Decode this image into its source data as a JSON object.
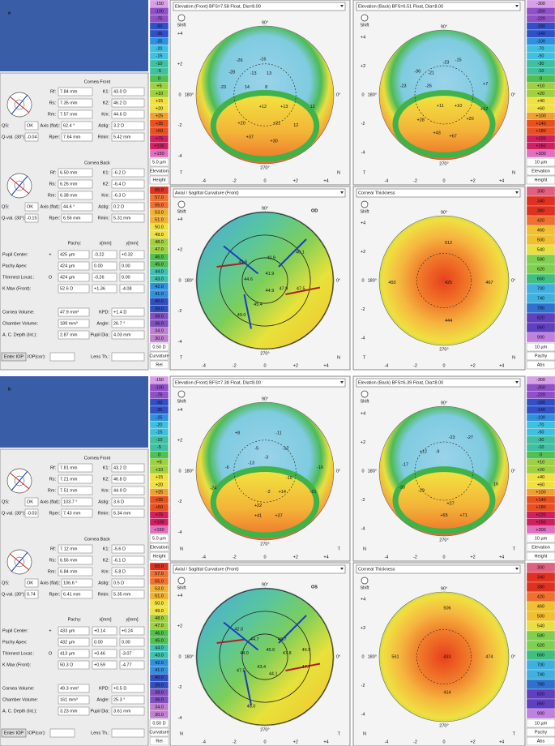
{
  "panels": [
    {
      "label": "a",
      "cornea_front": {
        "title": "Cornea Front",
        "rows": [
          [
            "Rf:",
            "7.84 mm",
            "K1:",
            "43.0 D"
          ],
          [
            "Rs:",
            "7.35 mm",
            "K2:",
            "46.2 D"
          ],
          [
            "Rm:",
            "7.57 mm",
            "Km:",
            "44.6 D"
          ],
          [
            "QS:",
            "OK",
            "Axis (flat):",
            "62.4 °",
            "Astig:",
            "3.2 D"
          ],
          [
            "Q-val. (30°):",
            "-0.04",
            "Rper:",
            "7.64 mm",
            "Rmin:",
            "5.42 mm"
          ]
        ]
      },
      "cornea_back": {
        "title": "Cornea Back",
        "rows": [
          [
            "Rf:",
            "6.50 mm",
            "K1:",
            "-6.2 D"
          ],
          [
            "Rs:",
            "6.26 mm",
            "K2:",
            "-6.4 D"
          ],
          [
            "Rm:",
            "6.38 mm",
            "Km:",
            "-6.3 D"
          ],
          [
            "QS:",
            "OK",
            "Axis (flat):",
            "44.6 °",
            "Astig:",
            "0.2 D"
          ],
          [
            "Q-val. (30°):",
            "-0.15",
            "Rper:",
            "6.56 mm",
            "Rmin:",
            "5.31 mm"
          ]
        ]
      },
      "pachy_table": {
        "header": [
          "Pachy:",
          "x[mm]",
          "y[mm]"
        ],
        "rows": [
          {
            "label": "Pupil Center:",
            "symbol": "+",
            "values": [
              "425 µm",
              "-0.22",
              "+0.32"
            ]
          },
          {
            "label": "Pachy Apex:",
            "values": [
              "424 µm",
              "0.00",
              "0.00"
            ]
          },
          {
            "label": "Thinnest Locat.:",
            "symbol": "O",
            "values": [
              "424 µm",
              "-0.26",
              "0.00"
            ]
          },
          {
            "label": "K Max (Front):",
            "values": [
              "52.6 D",
              "+1.36",
              "-4.08"
            ]
          }
        ]
      },
      "volumes": [
        [
          "Cornea Volume:",
          "47.9 mm³",
          "KPD:",
          "+1.4 D"
        ],
        [
          "Chamber Volume:",
          "189 mm³",
          "Angle:",
          "26.7 °"
        ],
        [
          "A. C. Depth (Int.):",
          "2.87 mm",
          "Pupil Dia:",
          "4.03 mm"
        ]
      ],
      "footer": {
        "button": "Enter IOP",
        "iop": "IOP(cor):",
        "lens": "Lens Th.:"
      },
      "maps": [
        {
          "title": "Elevation (Front) BFS=7.58 Float, Dia=8.00",
          "left": "T",
          "right": "N",
          "numbers": [
            "-26",
            "-16",
            "-28",
            "-13",
            "13",
            "-23",
            "14",
            "8",
            "+12",
            "+13",
            "12",
            "+20",
            "+21",
            "12",
            "+37",
            "+30"
          ]
        },
        {
          "title": "Elevation (Back) BFS=6.51 Float, Dia=8.00",
          "left": "T",
          "right": "N",
          "numbers": [
            "-23",
            "-15",
            "-36",
            "-21",
            "-23",
            "-26",
            "+7",
            "+11",
            "+10",
            "+12",
            "+28",
            "+20",
            "+43",
            "+67"
          ]
        },
        {
          "title": "Axial / Sagittal Curvature (Front)",
          "eye": "OD",
          "left": "T",
          "right": "N",
          "numbers": [
            "40.9",
            "46.1",
            "41.6",
            "44.6",
            "41.9",
            "44.9",
            "47.9",
            "47.5",
            "45.4",
            "49.0"
          ]
        },
        {
          "title": "Corneal Thickness",
          "left": "T",
          "right": "N",
          "numbers": [
            "512",
            "493",
            "467",
            "425",
            "444"
          ]
        }
      ]
    },
    {
      "label": "b",
      "cornea_front": {
        "title": "Cornea Front",
        "rows": [
          [
            "Rf:",
            "7.81 mm",
            "K1:",
            "43.2 D"
          ],
          [
            "Rs:",
            "7.21 mm",
            "K2:",
            "46.8 D"
          ],
          [
            "Rm:",
            "7.51 mm",
            "Km:",
            "44.9 D"
          ],
          [
            "QS:",
            "OK",
            "Axis (flat):",
            "103.7 °",
            "Astig:",
            "3.6 D"
          ],
          [
            "Q-val. (30°):",
            "-0.03",
            "Rper:",
            "7.43 mm",
            "Rmin:",
            "6.34 mm"
          ]
        ]
      },
      "cornea_back": {
        "title": "Cornea Back",
        "rows": [
          [
            "Rf:",
            "7.12 mm",
            "K1:",
            "-5.6 D"
          ],
          [
            "Rs:",
            "6.56 mm",
            "K2:",
            "-6.1 D"
          ],
          [
            "Rm:",
            "6.84 mm",
            "Km:",
            "-5.8 D"
          ],
          [
            "QS:",
            "OK",
            "Axis (flat):",
            "106.6 °",
            "Astig:",
            "0.5 D"
          ],
          [
            "Q-val. (30°):",
            "0.74",
            "Rper:",
            "6.41 mm",
            "Rmin:",
            "5.35 mm"
          ]
        ]
      },
      "pachy_table": {
        "header": [
          "Pachy:",
          "x[mm]",
          "y[mm]"
        ],
        "rows": [
          {
            "label": "Pupil Center:",
            "symbol": "+",
            "values": [
              "433 µm",
              "+0.14",
              "+0.24"
            ]
          },
          {
            "label": "Pachy Apex:",
            "values": [
              "432 µm",
              "0.00",
              "0.00"
            ]
          },
          {
            "label": "Thinnest Locat.:",
            "symbol": "O",
            "values": [
              "413 µm",
              "+0.46",
              "-3.07"
            ]
          },
          {
            "label": "K Max (Front):",
            "values": [
              "50.3 D",
              "+0.59",
              "-4.77"
            ]
          }
        ]
      },
      "volumes": [
        [
          "Cornea Volume:",
          "49.3 mm³",
          "KPD:",
          "+0.5 D"
        ],
        [
          "Chamber Volume:",
          "161 mm³",
          "Angle:",
          "25.3 °"
        ],
        [
          "A. C. Depth (Int.):",
          "3.23 mm",
          "Pupil Dia:",
          "3.61 mm"
        ]
      ],
      "footer": {
        "button": "Enter IOP",
        "iop": "IOP(cor):",
        "lens": "Lens Th.:"
      },
      "maps": [
        {
          "title": "Elevation (Front) BFS=7.38 Float, Dia=8.00",
          "left": "N",
          "right": "T",
          "numbers": [
            "+8",
            "-11",
            "-5",
            "-12",
            "-13",
            "-3",
            "-6",
            "-16",
            "-24",
            "-19",
            "+14",
            "-2",
            "-21",
            "+22",
            "+41",
            "+37"
          ]
        },
        {
          "title": "Elevation (Back) BFS=6.39 Float, Dia=8.00",
          "left": "N",
          "right": "T",
          "numbers": [
            "-23",
            "-27",
            "+12",
            "-9",
            "-17",
            "16",
            "-33",
            "-29",
            "+27",
            "+65",
            "+71"
          ]
        },
        {
          "title": "Axial / Sagittal Curvature (Front)",
          "eye": "OS",
          "left": "N",
          "right": "T",
          "numbers": [
            "42.0",
            "44.7",
            "46.7",
            "46.5",
            "45.6",
            "44.0",
            "47.8",
            "47.5",
            "43.4",
            "44.1",
            "47.7",
            "48.0"
          ]
        },
        {
          "title": "Corneal Thickness",
          "left": "N",
          "right": "T",
          "numbers": [
            "506",
            "561",
            "474",
            "433",
            "414"
          ]
        }
      ]
    }
  ],
  "map_axes": {
    "xticks": [
      "-4",
      "-2",
      "0",
      "+2",
      "+4"
    ],
    "yticks": [
      "+4",
      "+2",
      "0",
      "-2",
      "-4"
    ],
    "top": "90°",
    "bottom": "270°",
    "right": "0°",
    "left": "180°",
    "icon": "Shift"
  },
  "scales": {
    "elev_front": {
      "labels": [
        "-150",
        "-100",
        "-75",
        "-50",
        "-35",
        "-25",
        "-20",
        "-15",
        "-10",
        "-5",
        "0",
        "+5",
        "+10",
        "+15",
        "+20",
        "+25",
        "+35",
        "+50",
        "+75",
        "+100",
        "+150"
      ],
      "footer": [
        "5.0 µm",
        "Elevation",
        "Height"
      ]
    },
    "elev_back": {
      "labels": [
        "-300",
        "-260",
        "-220",
        "-180",
        "-140",
        "-100",
        "-70",
        "-50",
        "-30",
        "-10",
        "0",
        "+10",
        "+20",
        "+40",
        "+60",
        "+100",
        "+140",
        "+180",
        "+220",
        "+260",
        "+300"
      ],
      "footer": [
        "10 µm",
        "Elevation",
        "Height"
      ]
    },
    "curvature": {
      "labels": [
        "65.0",
        "57.0",
        "55.0",
        "53.0",
        "51.0",
        "50.0",
        "49.0",
        "48.0",
        "47.0",
        "46.0",
        "45.0",
        "44.0",
        "43.0",
        "42.0",
        "41.0",
        "40.0",
        "39.0",
        "38.0",
        "36.0",
        "34.0",
        "30.0"
      ],
      "footer": [
        "0.50 D",
        "Curvature",
        "Rel"
      ]
    },
    "pachy": {
      "labels": [
        "300",
        "340",
        "380",
        "420",
        "460",
        "500",
        "540",
        "580",
        "620",
        "660",
        "700",
        "740",
        "780",
        "820",
        "860",
        "900"
      ],
      "footer": [
        "10 µm",
        "Pachy",
        "Abs"
      ]
    }
  }
}
